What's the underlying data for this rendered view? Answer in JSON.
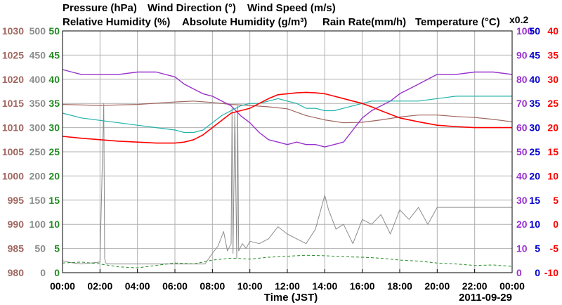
{
  "colors": {
    "pressure": "#a0665f",
    "wind_direction": "#8c8c8c",
    "wind_speed": "#228b22",
    "relative_humidity": "#9932cc",
    "absolute_humidity": "#20b2aa",
    "rain_rate": "#0000cd",
    "temperature": "#ff0000",
    "grid": "#b0b0b0",
    "frame": "#000000"
  },
  "chart_data": {
    "type": "line",
    "grid": true,
    "titles": {
      "pressure": "Pressure (hPa)",
      "wind_direction": "Wind Direction (°)",
      "wind_speed": "Wind Speed (m/s)",
      "relative_humidity": "Relative Humidity (%)",
      "absolute_humidity": "Absolute Humidity (g/m³)",
      "absolute_humidity_factor": "x0.2",
      "rain_rate": "Rain Rate(mm/h)",
      "temperature": "Temperature (°C)"
    },
    "xlabel": "Time (JST)",
    "date": "2011-09-29",
    "xlim": [
      0,
      24
    ],
    "x_ticks": [
      "00:00",
      "02:00",
      "04:00",
      "06:00",
      "08:00",
      "10:00",
      "12:00",
      "14:00",
      "16:00",
      "18:00",
      "20:00",
      "22:00",
      "00:00"
    ],
    "axes": {
      "pressure": {
        "ylim": [
          980,
          1030
        ],
        "ticks": [
          "980",
          "985",
          "990",
          "995",
          "1000",
          "1005",
          "1010",
          "1015",
          "1020",
          "1025",
          "1030"
        ]
      },
      "wind_direction": {
        "ylim": [
          0,
          500
        ],
        "ticks": [
          "0",
          "50",
          "100",
          "150",
          "200",
          "250",
          "300",
          "350",
          "400",
          "450",
          "500"
        ]
      },
      "wind_speed": {
        "ylim": [
          0,
          50
        ],
        "ticks": [
          "0",
          "5",
          "10",
          "15",
          "20",
          "25",
          "30",
          "35",
          "40",
          "45",
          "50"
        ]
      },
      "relative_humidity": {
        "ylim": [
          0,
          100
        ],
        "ticks": [
          "0",
          "10",
          "20",
          "30",
          "40",
          "50",
          "60",
          "70",
          "80",
          "90",
          "100"
        ]
      },
      "rain_rate": {
        "ylim": [
          0,
          50
        ],
        "ticks": [
          "0",
          "5",
          "10",
          "15",
          "20",
          "25",
          "30",
          "35",
          "40",
          "45",
          "50"
        ]
      },
      "temperature": {
        "ylim": [
          -10,
          40
        ],
        "ticks": [
          "-10",
          "-5",
          "0",
          "5",
          "10",
          "15",
          "20",
          "25",
          "30",
          "35",
          "40"
        ]
      }
    },
    "series": [
      {
        "key": "pressure",
        "axis": "pressure",
        "x": [
          0,
          2,
          4,
          6,
          7,
          8,
          9,
          10,
          11,
          12,
          13,
          14,
          15,
          16,
          17,
          18,
          19,
          20,
          21,
          22,
          23,
          24
        ],
        "y": [
          1014.8,
          1014.6,
          1014.8,
          1015.3,
          1015.5,
          1015.2,
          1014.8,
          1014.6,
          1014.3,
          1013.9,
          1012.5,
          1011.6,
          1011.0,
          1011.1,
          1011.6,
          1012.2,
          1012.6,
          1012.6,
          1012.3,
          1012.1,
          1011.7,
          1011.2
        ]
      },
      {
        "key": "wind_direction",
        "axis": "wind_direction",
        "x": [
          0,
          0.3,
          0.6,
          1.0,
          1.5,
          2.0,
          2.2,
          2.25,
          2.3,
          2.5,
          3,
          4,
          5,
          6,
          7,
          7.6,
          8.0,
          8.3,
          8.6,
          8.8,
          9.0,
          9.05,
          9.1,
          9.2,
          9.3,
          9.35,
          9.4,
          9.6,
          9.8,
          10.0,
          10.5,
          11.0,
          11.5,
          12.0,
          12.5,
          13.0,
          13.5,
          14.0,
          14.2,
          14.4,
          14.6,
          15.0,
          15.5,
          16.0,
          16.5,
          17.0,
          17.5,
          18.0,
          18.5,
          19.0,
          19.5,
          20.0,
          21.0,
          22.0,
          23.0,
          24.0
        ],
        "y": [
          25,
          22,
          20,
          18,
          20,
          22,
          350,
          30,
          20,
          18,
          18,
          18,
          18,
          18,
          18,
          18,
          40,
          55,
          85,
          45,
          60,
          340,
          40,
          330,
          30,
          345,
          45,
          60,
          50,
          65,
          60,
          70,
          95,
          80,
          70,
          60,
          90,
          160,
          130,
          110,
          90,
          100,
          60,
          110,
          100,
          120,
          80,
          130,
          110,
          135,
          100,
          135,
          135,
          135,
          135,
          135
        ]
      },
      {
        "key": "wind_speed",
        "axis": "wind_speed",
        "x": [
          0,
          1,
          2,
          3,
          4,
          5,
          6,
          7,
          8,
          9,
          10,
          11,
          12,
          13,
          14,
          15,
          16,
          17,
          18,
          19,
          20,
          21,
          22,
          23,
          24
        ],
        "y": [
          2.0,
          2.2,
          1.8,
          1.2,
          1.0,
          1.5,
          2.0,
          1.8,
          2.6,
          3.0,
          2.8,
          3.2,
          3.4,
          3.6,
          3.5,
          3.3,
          3.2,
          3.0,
          2.6,
          2.4,
          2.0,
          1.8,
          1.5,
          1.6,
          1.3
        ]
      },
      {
        "key": "relative_humidity",
        "axis": "relative_humidity",
        "x": [
          0,
          0.5,
          1,
          2,
          3,
          4,
          5,
          6,
          6.5,
          7,
          7.5,
          8,
          8.5,
          9,
          9.5,
          10,
          10.5,
          11,
          11.5,
          12,
          12.5,
          13,
          13.5,
          14,
          14.5,
          15,
          15.5,
          16,
          16.5,
          17,
          17.5,
          18,
          18.5,
          19,
          19.5,
          20,
          21,
          22,
          23,
          24
        ],
        "y": [
          84,
          83,
          82,
          82,
          82,
          83,
          83,
          81,
          78,
          76,
          74,
          73,
          71,
          69,
          65,
          62,
          58,
          55,
          54,
          53,
          54,
          53,
          53,
          52,
          53,
          54,
          59,
          64,
          67,
          69,
          71,
          74,
          76,
          78,
          80,
          82,
          82,
          83,
          83,
          82
        ]
      },
      {
        "key": "absolute_humidity",
        "axis": "relative_humidity",
        "note": "plotted as value x0.2 on the 0-100 axis",
        "x": [
          0,
          1,
          2,
          3,
          4,
          5,
          6,
          6.5,
          7,
          7.5,
          8,
          8.5,
          9,
          9.5,
          10,
          10.5,
          11,
          11.5,
          12,
          12.5,
          13,
          13.5,
          14,
          14.5,
          15,
          15.5,
          16,
          16.5,
          17,
          18,
          19,
          20,
          21,
          22,
          23,
          24
        ],
        "y": [
          66,
          64,
          63,
          62,
          61,
          60,
          59,
          58,
          58,
          59,
          62,
          65,
          67,
          69,
          70,
          70,
          71,
          72,
          71,
          70,
          68,
          68,
          67,
          67,
          68,
          69,
          70,
          71,
          71,
          71,
          71,
          72,
          73,
          73,
          73,
          73
        ]
      },
      {
        "key": "temperature",
        "axis": "temperature",
        "x": [
          0,
          1,
          2,
          3,
          4,
          5,
          6,
          6.5,
          7,
          7.5,
          8,
          8.5,
          9,
          9.5,
          10,
          10.5,
          11,
          11.5,
          12,
          12.5,
          13,
          13.5,
          14,
          14.5,
          15,
          15.5,
          16,
          16.5,
          17,
          18,
          19,
          20,
          21,
          22,
          23,
          24
        ],
        "y": [
          18.2,
          17.8,
          17.5,
          17.2,
          17.0,
          16.8,
          16.8,
          17.0,
          17.5,
          18.5,
          20.0,
          21.5,
          23.0,
          23.5,
          24.0,
          25.0,
          26.0,
          26.8,
          27.0,
          27.2,
          27.3,
          27.2,
          27.0,
          26.5,
          26.0,
          25.5,
          25.0,
          24.3,
          23.5,
          22.0,
          21.2,
          20.5,
          20.2,
          20.0,
          20.0,
          20.0
        ]
      },
      {
        "key": "rain_rate",
        "axis": "rain_rate",
        "x": [
          0,
          24
        ],
        "y": [
          0,
          0
        ]
      }
    ]
  }
}
